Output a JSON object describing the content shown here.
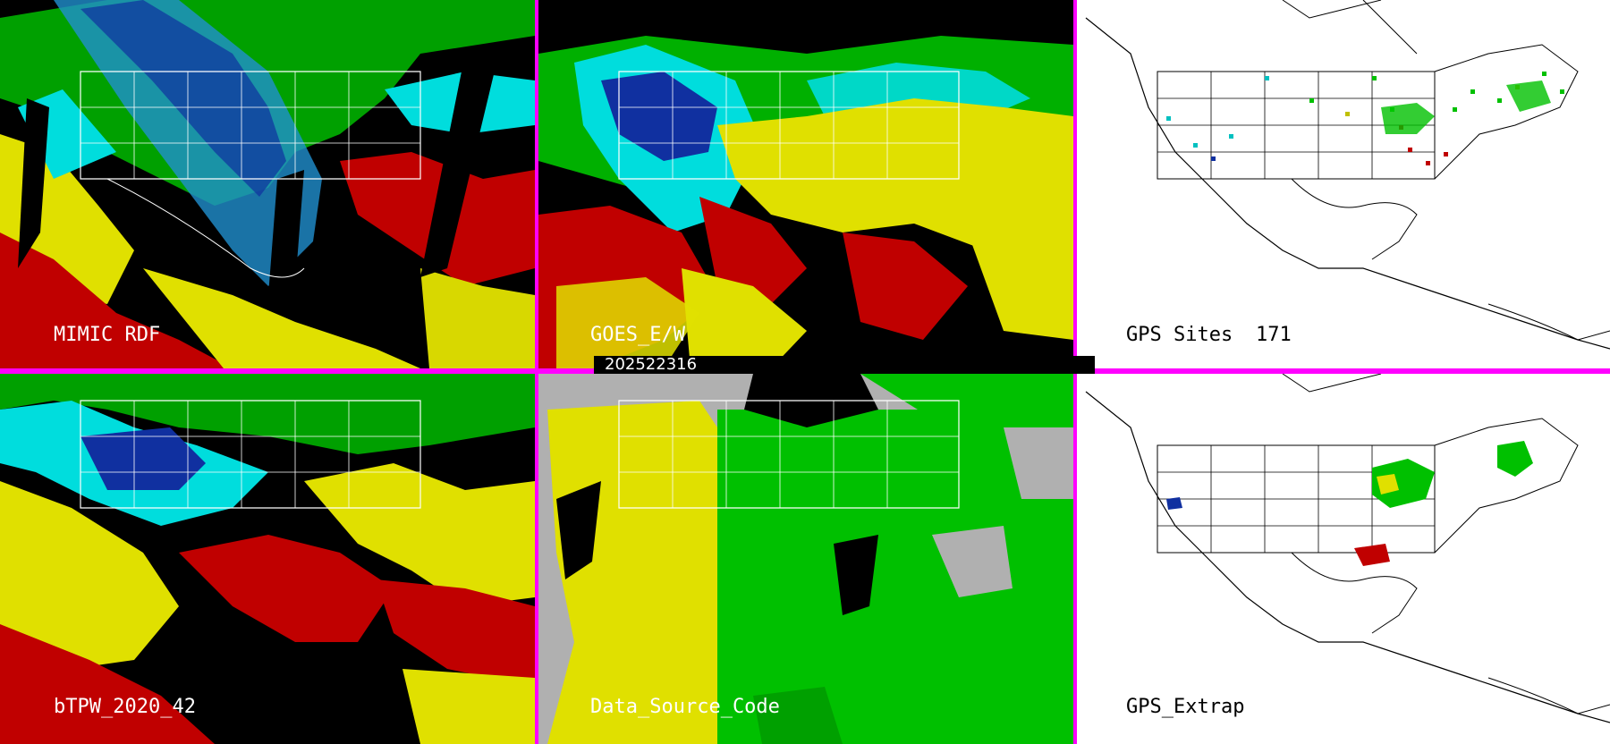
{
  "timestamp": "202522316",
  "panels": [
    {
      "id": "mimic",
      "label": "MIMIC RDF"
    },
    {
      "id": "goes",
      "label": "GOES_E/W"
    },
    {
      "id": "gps-sites",
      "label": "GPS Sites",
      "count": "171"
    },
    {
      "id": "btpw",
      "label": "bTPW_2020_42"
    },
    {
      "id": "dsc",
      "label": "Data_Source_Code"
    },
    {
      "id": "gps-extrap",
      "label": "GPS_Extrap"
    }
  ],
  "colors": {
    "divider": "#ff00ff",
    "dry_blue": "#0000aa",
    "cyan": "#00e0e0",
    "green": "#00c000",
    "yellow": "#e0e000",
    "red": "#c00000",
    "gray": "#b0b0b0"
  }
}
